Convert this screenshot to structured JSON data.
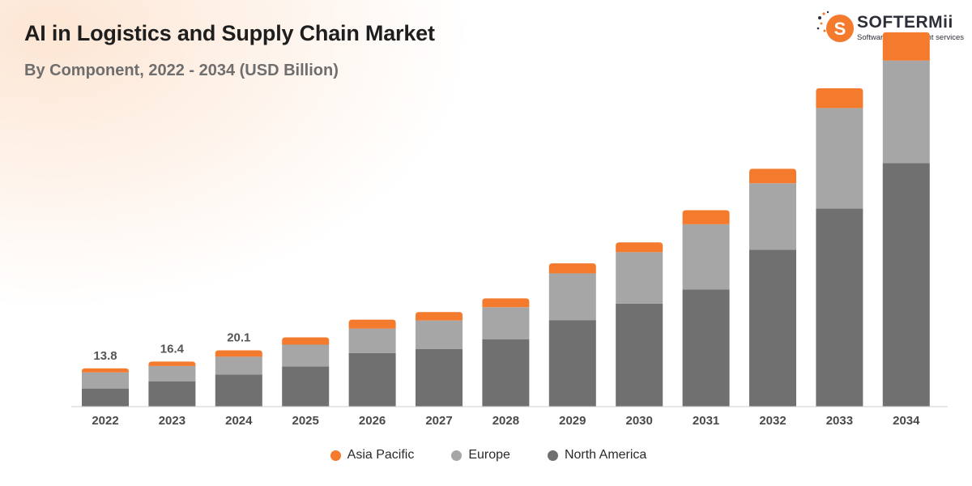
{
  "brand": {
    "name": "SOFTERMii",
    "tagline": "Software development services",
    "mark_letter": "S",
    "accent": "#f47a2e"
  },
  "chart_data": {
    "type": "bar",
    "stacked": true,
    "title": "AI in Logistics and Supply Chain Market",
    "subtitle": "By Component, 2022 - 2034 (USD Billion)",
    "categories": [
      "2022",
      "2023",
      "2024",
      "2025",
      "2026",
      "2027",
      "2028",
      "2029",
      "2030",
      "2031",
      "2032",
      "2033",
      "2034"
    ],
    "series": [
      {
        "name": "North America",
        "color": "#707070",
        "values": [
          4.5,
          6.3,
          8.0,
          10.0,
          13.3,
          14.3,
          16.7,
          21.5,
          25.6,
          29.1,
          39.0,
          49.2,
          60.5
        ]
      },
      {
        "name": "Europe",
        "color": "#a6a6a6",
        "values": [
          4.0,
          3.8,
          4.4,
          5.4,
          6.1,
          7.1,
          8.0,
          11.6,
          12.8,
          16.2,
          16.5,
          25.0,
          25.5
        ]
      },
      {
        "name": "Asia Pacific",
        "color": "#f47a2e",
        "values": [
          1.0,
          1.1,
          1.6,
          1.8,
          2.2,
          2.1,
          2.2,
          2.5,
          2.4,
          3.5,
          3.6,
          4.9,
          7.0
        ]
      }
    ],
    "data_labels": {
      "2022": "13.8",
      "2023": "16.4",
      "2024": "20.1"
    },
    "legend_order": [
      "Asia Pacific",
      "Europe",
      "North America"
    ],
    "legend_position": "bottom",
    "ylim": [
      0,
      95
    ],
    "grid": false,
    "xlabel": "",
    "ylabel": ""
  }
}
